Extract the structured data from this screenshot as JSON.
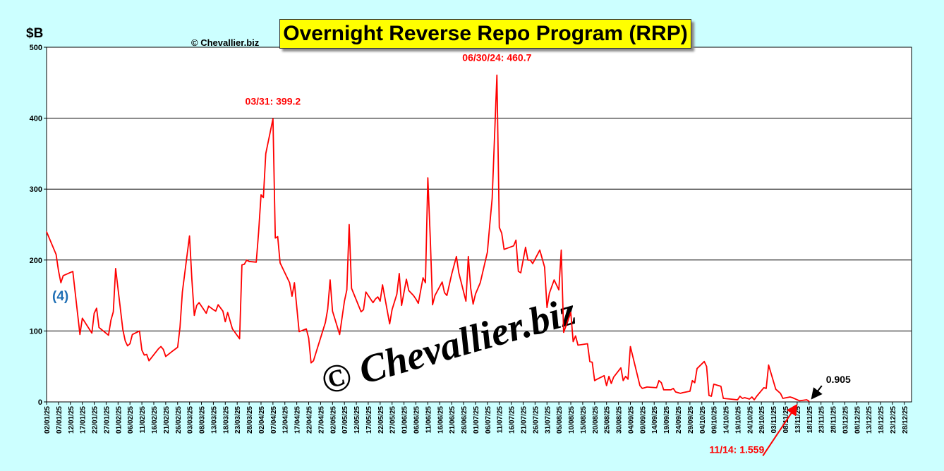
{
  "header": {
    "title": "Overnight Reverse Repo Program (RRP)",
    "copyright": "© Chevallier.biz",
    "unit": "$B",
    "marker": "(4)",
    "watermark": "© Chevallier.biz"
  },
  "chart_data": {
    "type": "line",
    "title": "Overnight Reverse Repo Program (RRP)",
    "ylabel": "$B",
    "ylim": [
      0,
      500
    ],
    "yticks": [
      0,
      100,
      200,
      300,
      400,
      500
    ],
    "grid": "horizontal",
    "line_color": "#ff0000",
    "xlim": [
      "2025-01-02",
      "2025-12-31"
    ],
    "x_tick_labels": [
      "02/01/25",
      "07/01/25",
      "12/01/25",
      "17/01/25",
      "22/01/25",
      "27/01/25",
      "01/02/25",
      "06/02/25",
      "11/02/25",
      "16/02/25",
      "21/02/25",
      "26/02/25",
      "03/03/25",
      "08/03/25",
      "13/03/25",
      "18/03/25",
      "23/03/25",
      "28/03/25",
      "02/04/25",
      "07/04/25",
      "12/04/25",
      "17/04/25",
      "22/04/25",
      "27/04/25",
      "02/05/25",
      "07/05/25",
      "12/05/25",
      "17/05/25",
      "22/05/25",
      "27/05/25",
      "01/06/25",
      "06/06/25",
      "11/06/25",
      "16/06/25",
      "21/06/25",
      "26/06/25",
      "01/07/25",
      "06/07/25",
      "11/07/25",
      "16/07/25",
      "21/07/25",
      "26/07/25",
      "31/07/25",
      "05/08/25",
      "10/08/25",
      "15/08/25",
      "20/08/25",
      "25/08/25",
      "30/08/25",
      "04/09/25",
      "09/09/25",
      "14/09/25",
      "19/09/25",
      "24/09/25",
      "29/09/25",
      "04/10/25",
      "09/10/25",
      "14/10/25",
      "19/10/25",
      "24/10/25",
      "29/10/25",
      "03/11/25",
      "08/11/25",
      "13/11/25",
      "18/11/25",
      "23/11/25",
      "28/11/25",
      "03/12/25",
      "08/12/25",
      "13/12/25",
      "18/12/25",
      "23/12/25",
      "28/12/25"
    ],
    "series": [
      {
        "points": [
          [
            "2025-01-02",
            240
          ],
          [
            "2025-01-06",
            208
          ],
          [
            "2025-01-07",
            185
          ],
          [
            "2025-01-08",
            168
          ],
          [
            "2025-01-09",
            178
          ],
          [
            "2025-01-13",
            184
          ],
          [
            "2025-01-15",
            125
          ],
          [
            "2025-01-16",
            95
          ],
          [
            "2025-01-17",
            118
          ],
          [
            "2025-01-21",
            97
          ],
          [
            "2025-01-22",
            125
          ],
          [
            "2025-01-23",
            132
          ],
          [
            "2025-01-24",
            105
          ],
          [
            "2025-01-28",
            94
          ],
          [
            "2025-01-29",
            115
          ],
          [
            "2025-01-30",
            127
          ],
          [
            "2025-01-31",
            188
          ],
          [
            "2025-02-03",
            102
          ],
          [
            "2025-02-04",
            86
          ],
          [
            "2025-02-05",
            79
          ],
          [
            "2025-02-06",
            82
          ],
          [
            "2025-02-07",
            95
          ],
          [
            "2025-02-10",
            100
          ],
          [
            "2025-02-11",
            73
          ],
          [
            "2025-02-12",
            66
          ],
          [
            "2025-02-13",
            67
          ],
          [
            "2025-02-14",
            58
          ],
          [
            "2025-02-18",
            75
          ],
          [
            "2025-02-19",
            78
          ],
          [
            "2025-02-20",
            74
          ],
          [
            "2025-02-21",
            64
          ],
          [
            "2025-02-24",
            72
          ],
          [
            "2025-02-26",
            77
          ],
          [
            "2025-02-27",
            105
          ],
          [
            "2025-02-28",
            155
          ],
          [
            "2025-03-03",
            234
          ],
          [
            "2025-03-04",
            172
          ],
          [
            "2025-03-05",
            122
          ],
          [
            "2025-03-06",
            136
          ],
          [
            "2025-03-07",
            140
          ],
          [
            "2025-03-10",
            125
          ],
          [
            "2025-03-11",
            135
          ],
          [
            "2025-03-13",
            130
          ],
          [
            "2025-03-14",
            128
          ],
          [
            "2025-03-15",
            137
          ],
          [
            "2025-03-17",
            128
          ],
          [
            "2025-03-18",
            113
          ],
          [
            "2025-03-19",
            126
          ],
          [
            "2025-03-21",
            103
          ],
          [
            "2025-03-24",
            89
          ],
          [
            "2025-03-25",
            193
          ],
          [
            "2025-03-26",
            194
          ],
          [
            "2025-03-27",
            200
          ],
          [
            "2025-03-28",
            198
          ],
          [
            "2025-03-31",
            197
          ],
          [
            "2025-04-01",
            240
          ],
          [
            "2025-04-02",
            292
          ],
          [
            "2025-04-03",
            288
          ],
          [
            "2025-04-04",
            350
          ],
          [
            "2025-04-07",
            399.2
          ],
          [
            "2025-04-08",
            231
          ],
          [
            "2025-04-09",
            233
          ],
          [
            "2025-04-10",
            196
          ],
          [
            "2025-04-14",
            168
          ],
          [
            "2025-04-15",
            149
          ],
          [
            "2025-04-16",
            168
          ],
          [
            "2025-04-18",
            99
          ],
          [
            "2025-04-21",
            103
          ],
          [
            "2025-04-22",
            90
          ],
          [
            "2025-04-23",
            55
          ],
          [
            "2025-04-24",
            58
          ],
          [
            "2025-04-29",
            112
          ],
          [
            "2025-04-30",
            131
          ],
          [
            "2025-05-01",
            172
          ],
          [
            "2025-05-02",
            128
          ],
          [
            "2025-05-05",
            95
          ],
          [
            "2025-05-07",
            142
          ],
          [
            "2025-05-08",
            158
          ],
          [
            "2025-05-09",
            250
          ],
          [
            "2025-05-10",
            160
          ],
          [
            "2025-05-14",
            127
          ],
          [
            "2025-05-15",
            130
          ],
          [
            "2025-05-16",
            155
          ],
          [
            "2025-05-19",
            140
          ],
          [
            "2025-05-20",
            145
          ],
          [
            "2025-05-21",
            148
          ],
          [
            "2025-05-22",
            142
          ],
          [
            "2025-05-23",
            165
          ],
          [
            "2025-05-26",
            110
          ],
          [
            "2025-05-27",
            130
          ],
          [
            "2025-05-29",
            152
          ],
          [
            "2025-05-30",
            181
          ],
          [
            "2025-05-31",
            136
          ],
          [
            "2025-06-02",
            173
          ],
          [
            "2025-06-03",
            157
          ],
          [
            "2025-06-05",
            150
          ],
          [
            "2025-06-06",
            145
          ],
          [
            "2025-06-07",
            139
          ],
          [
            "2025-06-09",
            175
          ],
          [
            "2025-06-10",
            168
          ],
          [
            "2025-06-11",
            316
          ],
          [
            "2025-06-12",
            232
          ],
          [
            "2025-06-13",
            137
          ],
          [
            "2025-06-14",
            150
          ],
          [
            "2025-06-17",
            169
          ],
          [
            "2025-06-18",
            154
          ],
          [
            "2025-06-19",
            150
          ],
          [
            "2025-06-20",
            165
          ],
          [
            "2025-06-21",
            180
          ],
          [
            "2025-06-23",
            205
          ],
          [
            "2025-06-24",
            182
          ],
          [
            "2025-06-27",
            142
          ],
          [
            "2025-06-28",
            205
          ],
          [
            "2025-06-29",
            160
          ],
          [
            "2025-06-30",
            138
          ],
          [
            "2025-07-01",
            152
          ],
          [
            "2025-07-03",
            168
          ],
          [
            "2025-07-06",
            211
          ],
          [
            "2025-07-07",
            250
          ],
          [
            "2025-07-08",
            287
          ],
          [
            "2025-07-10",
            460.7
          ],
          [
            "2025-07-11",
            246
          ],
          [
            "2025-07-12",
            238
          ],
          [
            "2025-07-13",
            215
          ],
          [
            "2025-07-17",
            220
          ],
          [
            "2025-07-18",
            228
          ],
          [
            "2025-07-19",
            184
          ],
          [
            "2025-07-20",
            182
          ],
          [
            "2025-07-21",
            200
          ],
          [
            "2025-07-22",
            218
          ],
          [
            "2025-07-23",
            200
          ],
          [
            "2025-07-24",
            200
          ],
          [
            "2025-07-25",
            195
          ],
          [
            "2025-07-28",
            214
          ],
          [
            "2025-07-30",
            190
          ],
          [
            "2025-07-31",
            133
          ],
          [
            "2025-08-01",
            153
          ],
          [
            "2025-08-03",
            172
          ],
          [
            "2025-08-05",
            158
          ],
          [
            "2025-08-06",
            214
          ],
          [
            "2025-08-07",
            98
          ],
          [
            "2025-08-10",
            126
          ],
          [
            "2025-08-11",
            85
          ],
          [
            "2025-08-12",
            93
          ],
          [
            "2025-08-13",
            80
          ],
          [
            "2025-08-17",
            82
          ],
          [
            "2025-08-18",
            57
          ],
          [
            "2025-08-19",
            56
          ],
          [
            "2025-08-20",
            30
          ],
          [
            "2025-08-21",
            32
          ],
          [
            "2025-08-24",
            37
          ],
          [
            "2025-08-25",
            23
          ],
          [
            "2025-08-26",
            36
          ],
          [
            "2025-08-27",
            26
          ],
          [
            "2025-08-28",
            35
          ],
          [
            "2025-08-31",
            48
          ],
          [
            "2025-09-01",
            30
          ],
          [
            "2025-09-02",
            36
          ],
          [
            "2025-09-03",
            32
          ],
          [
            "2025-09-04",
            78
          ],
          [
            "2025-09-08",
            23
          ],
          [
            "2025-09-09",
            19
          ],
          [
            "2025-09-11",
            21
          ],
          [
            "2025-09-15",
            20
          ],
          [
            "2025-09-16",
            30
          ],
          [
            "2025-09-17",
            27
          ],
          [
            "2025-09-18",
            17
          ],
          [
            "2025-09-21",
            17
          ],
          [
            "2025-09-22",
            19
          ],
          [
            "2025-09-23",
            14
          ],
          [
            "2025-09-25",
            12
          ],
          [
            "2025-09-26",
            13
          ],
          [
            "2025-09-29",
            15
          ],
          [
            "2025-09-30",
            30
          ],
          [
            "2025-10-01",
            27
          ],
          [
            "2025-10-02",
            47
          ],
          [
            "2025-10-05",
            57
          ],
          [
            "2025-10-06",
            50
          ],
          [
            "2025-10-07",
            9
          ],
          [
            "2025-10-08",
            8
          ],
          [
            "2025-10-09",
            25
          ],
          [
            "2025-10-12",
            22
          ],
          [
            "2025-10-13",
            5
          ],
          [
            "2025-10-19",
            3
          ],
          [
            "2025-10-20",
            8
          ],
          [
            "2025-10-21",
            5
          ],
          [
            "2025-10-22",
            6
          ],
          [
            "2025-10-24",
            4
          ],
          [
            "2025-10-25",
            7
          ],
          [
            "2025-10-26",
            3
          ],
          [
            "2025-10-27",
            8
          ],
          [
            "2025-10-30",
            20
          ],
          [
            "2025-10-31",
            19
          ],
          [
            "2025-11-01",
            52
          ],
          [
            "2025-11-04",
            18
          ],
          [
            "2025-11-06",
            12
          ],
          [
            "2025-11-07",
            5
          ],
          [
            "2025-11-10",
            7
          ],
          [
            "2025-11-11",
            6
          ],
          [
            "2025-11-14",
            1.559
          ],
          [
            "2025-11-17",
            3
          ],
          [
            "2025-11-18",
            0.905
          ]
        ]
      }
    ],
    "annotations": [
      {
        "text": "03/31: 399.2",
        "x": "2025-04-07",
        "y": 399.2,
        "color": "#ff0000"
      },
      {
        "text": "06/30/24: 460.7",
        "x": "2025-07-10",
        "y": 460.7,
        "color": "#ff0000"
      },
      {
        "text": "0.905",
        "x": "2025-11-18",
        "y": 0.905,
        "color": "#000000"
      },
      {
        "text": "11/14: 1.559",
        "x": "2025-11-14",
        "y": 1.559,
        "color": "#ff0000"
      }
    ]
  }
}
